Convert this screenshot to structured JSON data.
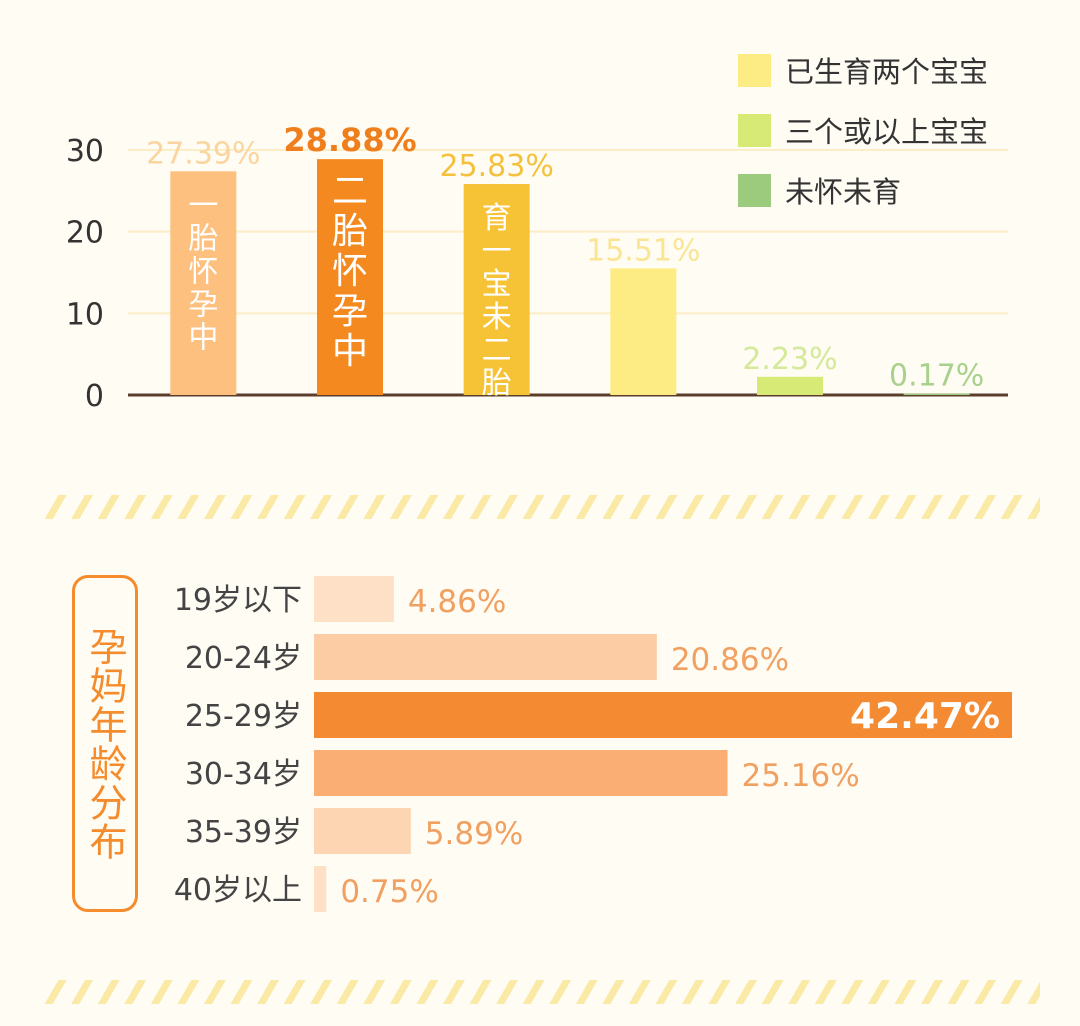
{
  "chart_data": [
    {
      "type": "bar",
      "categories": [
        "一胎怀孕中",
        "二胎怀孕中",
        "育一宝未二胎",
        "已生育两个宝宝",
        "三个或以上宝宝",
        "未怀未育"
      ],
      "values": [
        27.39,
        28.88,
        25.83,
        15.51,
        2.23,
        0.17
      ],
      "value_labels": [
        "27.39%",
        "28.88%",
        "25.83%",
        "15.51%",
        "2.23%",
        "0.17%"
      ],
      "bar_text": [
        "一胎怀孕中",
        "二胎怀孕中",
        "育一宝未二胎",
        "",
        "",
        ""
      ],
      "colors": [
        "#fdc07e",
        "#f48a1f",
        "#f6c236",
        "#fdeb83",
        "#d6ea75",
        "#9ccb7d"
      ],
      "label_colors": [
        "#fbd5a0",
        "#ef7f1c",
        "#f5c13d",
        "#fae594",
        "#d4e99a",
        "#a8d18c"
      ],
      "yticks": [
        0,
        10,
        20,
        30
      ],
      "ylim": [
        0,
        30
      ],
      "grid": true,
      "legend": {
        "placement": "top-right",
        "entries": [
          {
            "label": "已生育两个宝宝",
            "color": "#fdeb83"
          },
          {
            "label": "三个或以上宝宝",
            "color": "#d6ea75"
          },
          {
            "label": "未怀未育",
            "color": "#9ccb7d"
          }
        ]
      }
    },
    {
      "type": "bar",
      "orientation": "horizontal",
      "title": "孕妈年龄分布",
      "categories": [
        "19岁以下",
        "20-24岁",
        "25-29岁",
        "30-34岁",
        "35-39岁",
        "40岁以上"
      ],
      "values": [
        4.86,
        20.86,
        42.47,
        25.16,
        5.89,
        0.75
      ],
      "value_labels": [
        "4.86%",
        "20.86%",
        "42.47%",
        "25.16%",
        "5.89%",
        "0.75%"
      ],
      "colors": [
        "#fde0c5",
        "#fccda4",
        "#f48b33",
        "#faae73",
        "#fdd5b2",
        "#fde0c5"
      ],
      "label_color": "#f0a060",
      "highlight_label_color": "#ffffff"
    }
  ]
}
